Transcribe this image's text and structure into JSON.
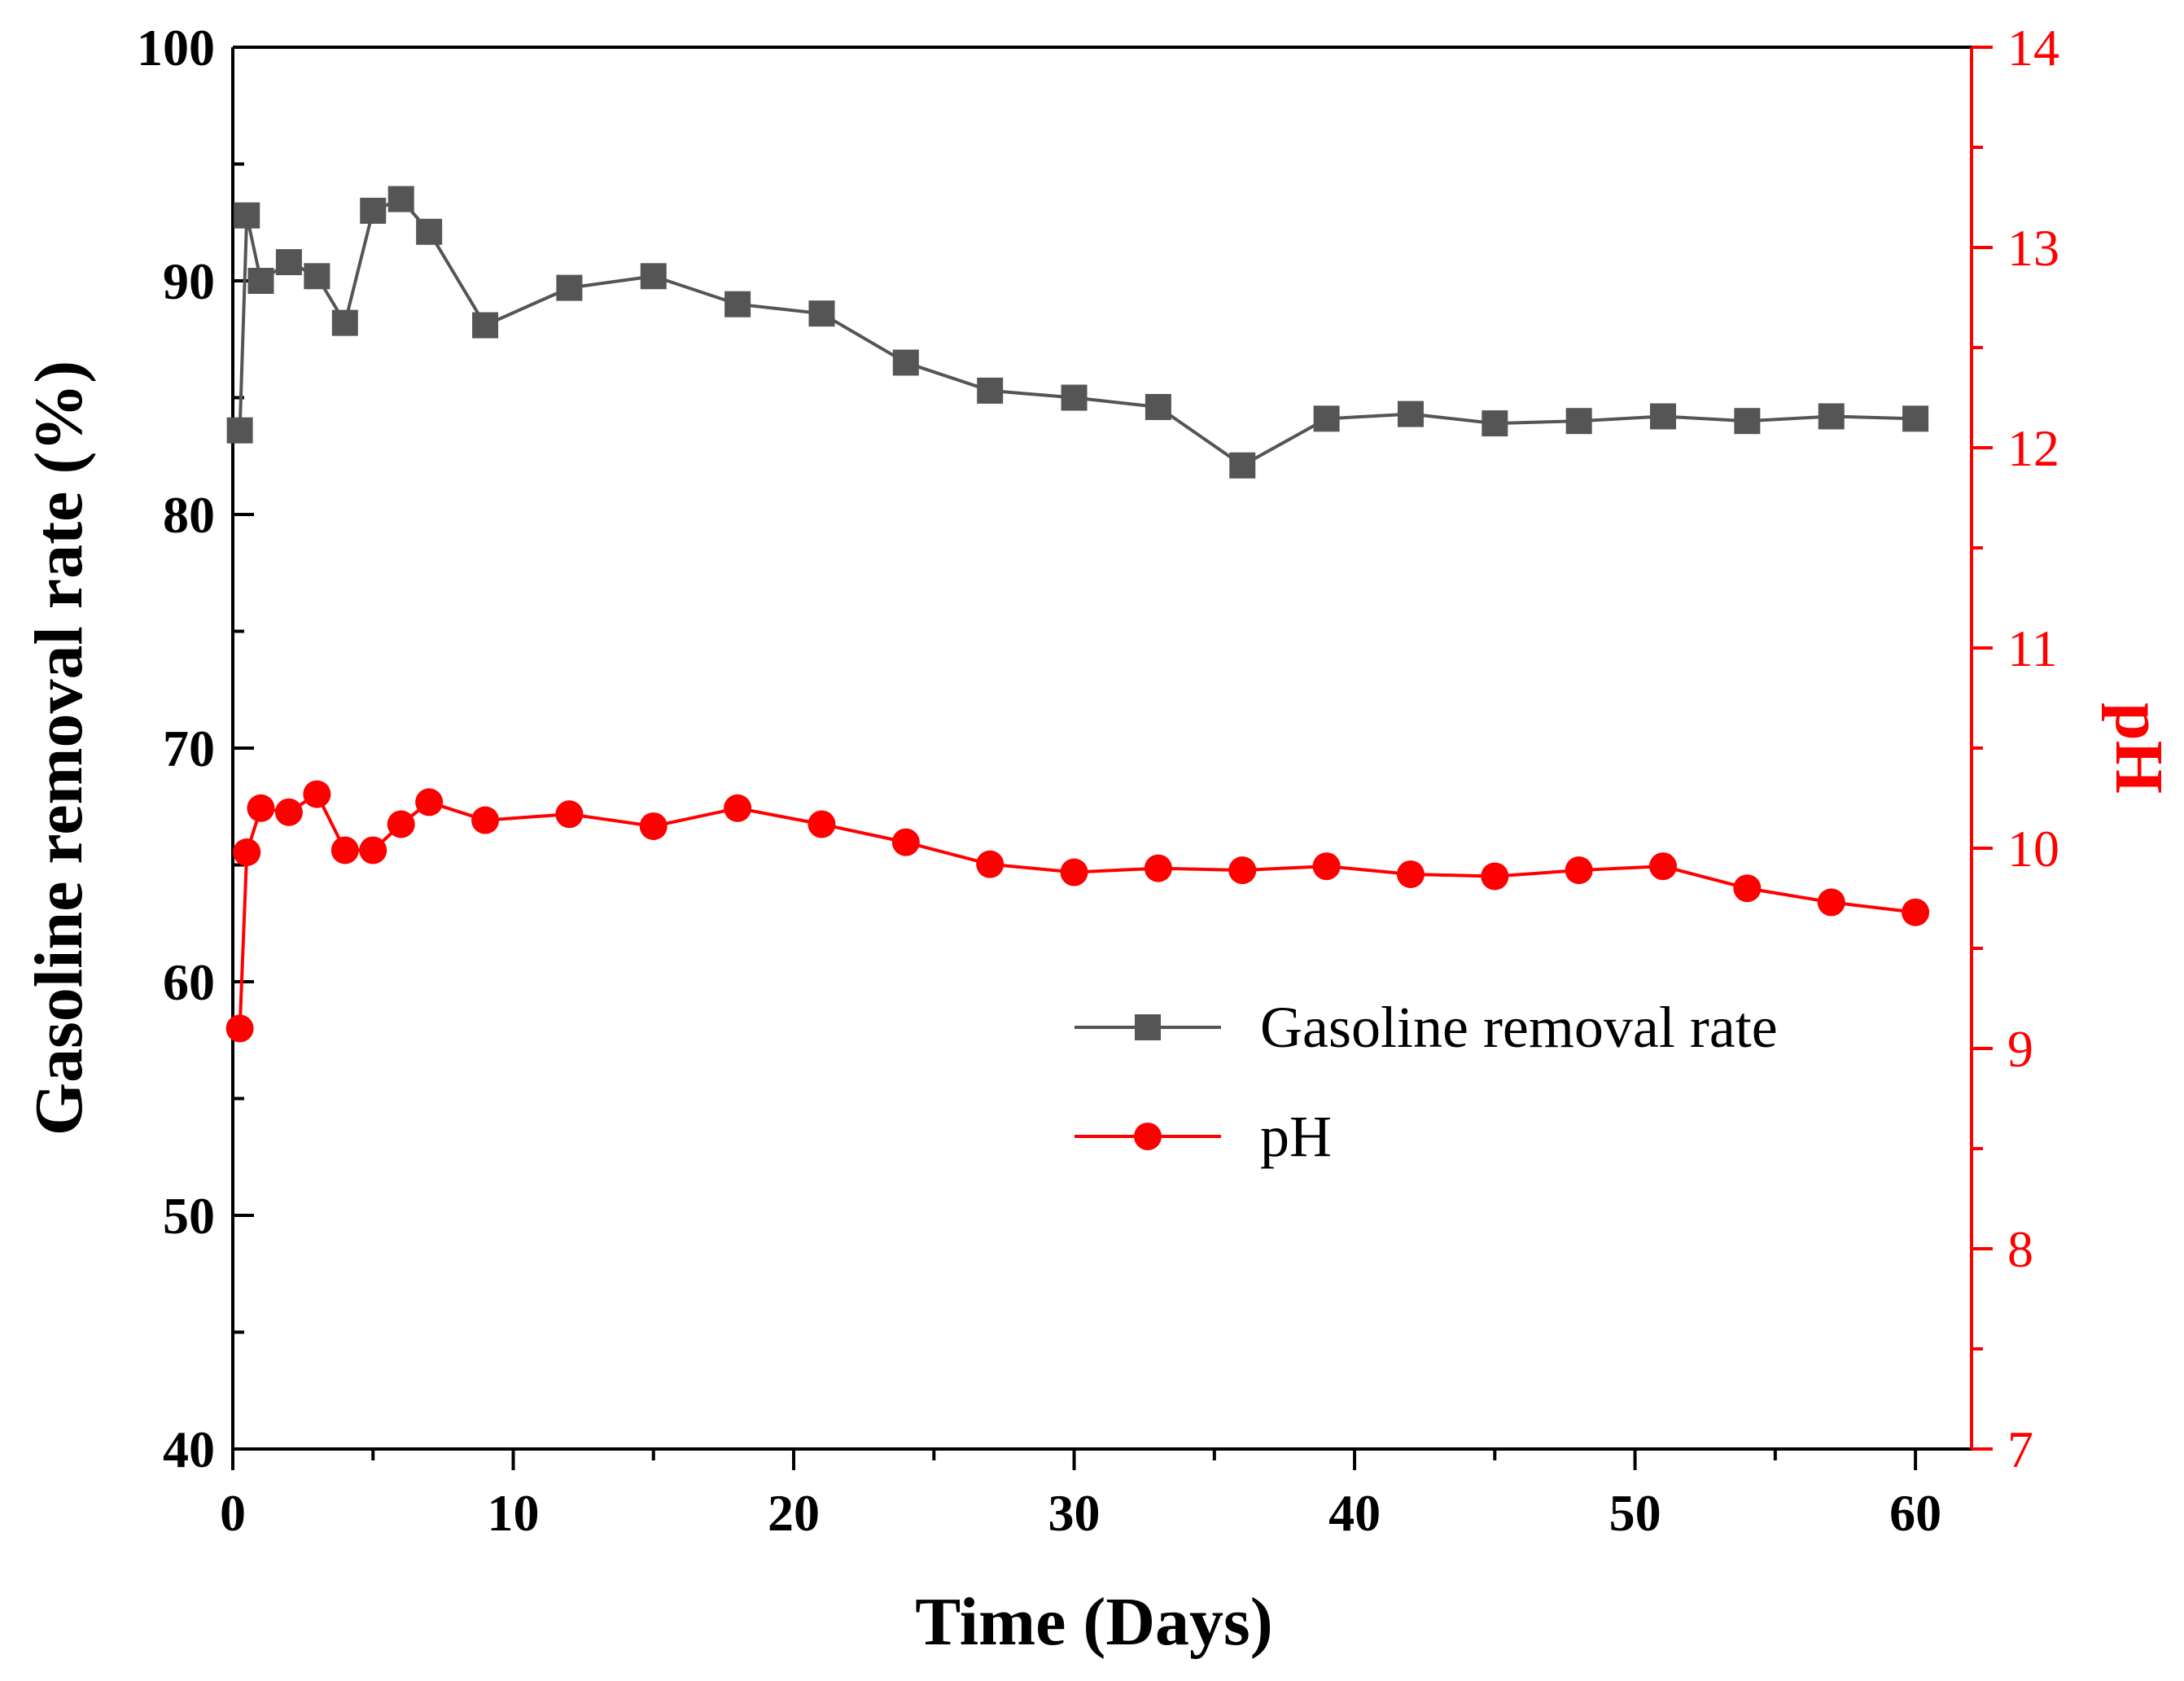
{
  "chart_data": {
    "type": "line",
    "title": "",
    "xlabel": "Time (Days)",
    "ylabel": "Gasoline removal rate (%)",
    "y2label": "pH",
    "xlim": [
      0,
      62
    ],
    "ylim": [
      40,
      100
    ],
    "y2lim": [
      7,
      14
    ],
    "xticks": [
      0,
      10,
      20,
      30,
      40,
      50,
      60
    ],
    "yticks": [
      40,
      50,
      60,
      70,
      80,
      90,
      100
    ],
    "y2ticks": [
      7,
      8,
      9,
      10,
      11,
      12,
      13,
      14
    ],
    "xtick_labels": [
      "0",
      "10",
      "20",
      "30",
      "40",
      "50",
      "60"
    ],
    "ytick_labels": [
      "40",
      "50",
      "60",
      "70",
      "80",
      "90",
      "100"
    ],
    "y2tick_labels": [
      "7",
      "8",
      "9",
      "10",
      "11",
      "12",
      "13",
      "14"
    ],
    "legend_position": "center-right",
    "grid": false,
    "series": [
      {
        "name": "Gasoline removal rate",
        "axis": "left",
        "color": "#555555",
        "marker": "square",
        "x": [
          0.25,
          0.5,
          1,
          2,
          3,
          4,
          5,
          6,
          7,
          9,
          12,
          15,
          18,
          21,
          24,
          27,
          30,
          33,
          36,
          39,
          42,
          45,
          48,
          51,
          54,
          57,
          60
        ],
        "values": [
          83.6,
          92.8,
          90.0,
          90.8,
          90.2,
          88.2,
          93.0,
          93.5,
          92.1,
          88.1,
          89.7,
          90.2,
          89.0,
          88.6,
          86.5,
          85.3,
          85.0,
          84.6,
          82.1,
          84.1,
          84.3,
          83.9,
          84.0,
          84.2,
          84.0,
          84.2,
          84.1
        ]
      },
      {
        "name": "pH",
        "axis": "right",
        "color": "#ff0000",
        "marker": "circle",
        "x": [
          0.25,
          0.5,
          1,
          2,
          3,
          4,
          5,
          6,
          7,
          9,
          12,
          15,
          18,
          21,
          24,
          27,
          30,
          33,
          36,
          39,
          42,
          45,
          48,
          51,
          54,
          57,
          60
        ],
        "values": [
          9.1,
          9.98,
          10.2,
          10.18,
          10.27,
          9.99,
          9.99,
          10.12,
          10.23,
          10.14,
          10.17,
          10.11,
          10.2,
          10.12,
          10.03,
          9.92,
          9.88,
          9.9,
          9.89,
          9.91,
          9.87,
          9.86,
          9.89,
          9.91,
          9.8,
          9.73,
          9.68
        ]
      }
    ]
  }
}
